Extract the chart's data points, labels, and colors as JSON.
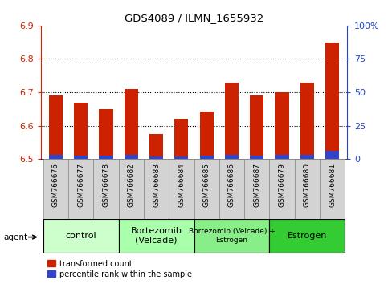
{
  "title": "GDS4089 / ILMN_1655932",
  "samples": [
    "GSM766676",
    "GSM766677",
    "GSM766678",
    "GSM766682",
    "GSM766683",
    "GSM766684",
    "GSM766685",
    "GSM766686",
    "GSM766687",
    "GSM766679",
    "GSM766680",
    "GSM766681"
  ],
  "red_values": [
    6.69,
    6.668,
    6.65,
    6.71,
    6.575,
    6.62,
    6.643,
    6.73,
    6.69,
    6.7,
    6.73,
    6.85
  ],
  "blue_heights": [
    0.013,
    0.011,
    0.009,
    0.013,
    0.007,
    0.008,
    0.01,
    0.013,
    0.011,
    0.012,
    0.012,
    0.025
  ],
  "ymin": 6.5,
  "ymax": 6.9,
  "yticks_left": [
    6.5,
    6.6,
    6.7,
    6.8,
    6.9
  ],
  "yticks_right_vals": [
    0,
    25,
    50,
    75,
    100
  ],
  "groups": [
    {
      "label": "control",
      "start": 0,
      "end": 2,
      "color": "#ccffcc"
    },
    {
      "label": "Bortezomib\n(Velcade)",
      "start": 3,
      "end": 5,
      "color": "#aaffaa"
    },
    {
      "label": "Bortezomib (Velcade) +\nEstrogen",
      "start": 6,
      "end": 8,
      "color": "#88ee88"
    },
    {
      "label": "Estrogen",
      "start": 9,
      "end": 11,
      "color": "#33cc33"
    }
  ],
  "legend_red": "transformed count",
  "legend_blue": "percentile rank within the sample",
  "bar_width": 0.55,
  "bar_color_red": "#cc2200",
  "bar_color_blue": "#3344cc",
  "left_axis_color": "#cc2200",
  "right_axis_color": "#2244cc",
  "grid_yticks": [
    6.6,
    6.7,
    6.8
  ]
}
